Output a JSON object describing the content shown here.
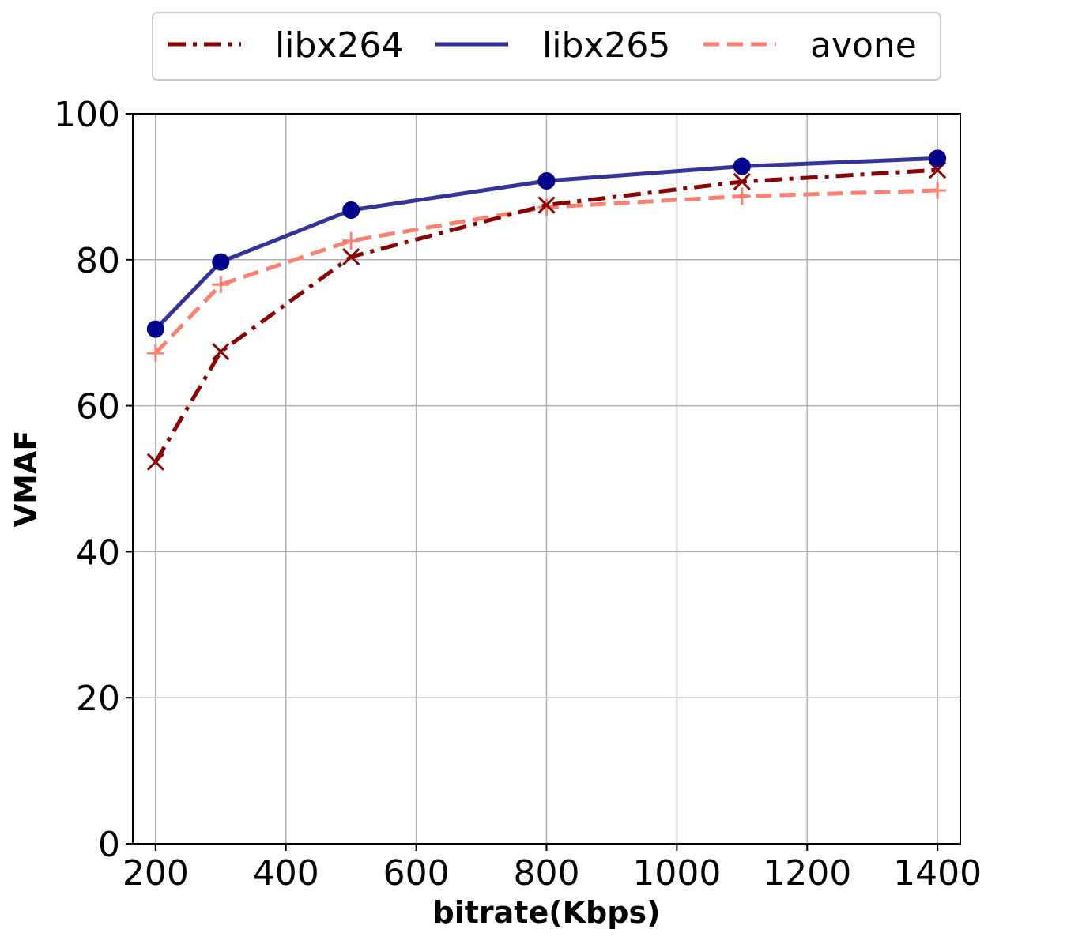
{
  "chart_data": {
    "type": "line",
    "title": "",
    "xlabel": "bitrate(Kbps)",
    "ylabel": "VMAF",
    "xlim": [
      165,
      1435
    ],
    "ylim": [
      0,
      100
    ],
    "xticks": [
      200,
      400,
      600,
      800,
      1000,
      1200,
      1400
    ],
    "yticks": [
      0,
      20,
      40,
      60,
      80,
      100
    ],
    "grid": true,
    "legend_position": "top-center",
    "series": [
      {
        "name": "libx264",
        "color": "#8b0000",
        "line_style": "dash-dot",
        "marker": "x",
        "x": [
          200,
          300,
          500,
          800,
          1100,
          1400
        ],
        "y": [
          52.3,
          67.4,
          80.4,
          87.5,
          90.7,
          92.3
        ]
      },
      {
        "name": "libx265",
        "color": "#333399",
        "marker_color": "#00008b",
        "line_style": "solid",
        "marker": "circle",
        "x": [
          200,
          300,
          500,
          800,
          1100,
          1400
        ],
        "y": [
          70.5,
          79.7,
          86.8,
          90.8,
          92.8,
          93.9
        ]
      },
      {
        "name": "avone",
        "color": "#fa8072",
        "line_style": "dashed",
        "marker": "plus",
        "x": [
          200,
          300,
          500,
          800,
          1100,
          1400
        ],
        "y": [
          67.2,
          76.6,
          82.6,
          87.2,
          88.7,
          89.5
        ]
      }
    ]
  }
}
